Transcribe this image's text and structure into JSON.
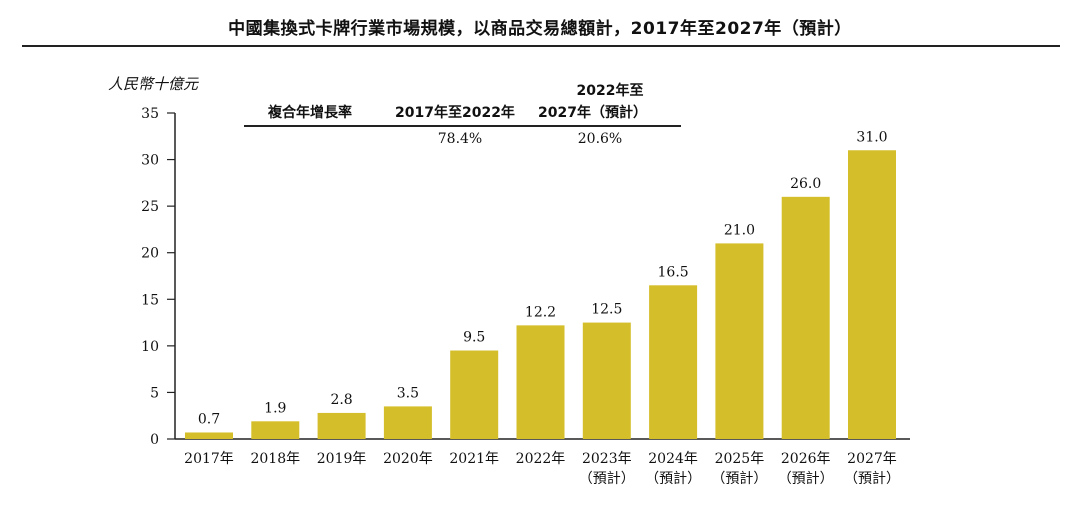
{
  "title": "中國集換式卡牌行業市場規模，以商品交易總額計，2017年至2027年（預計）",
  "unit_label": "人民幣十億元",
  "cagr_table": {
    "header": "複合年增長率",
    "col1": "2017年至2022年",
    "col2_line1": "2022年至",
    "col2_line2": "2027年（預計）",
    "val1": "78.4%",
    "val2": "20.6%"
  },
  "colors": {
    "bar": "#D4BE2A",
    "axis": "#222222"
  },
  "chart_data": {
    "type": "bar",
    "title": "中國集換式卡牌行業市場規模，以商品交易總額計，2017年至2027年（預計）",
    "ylabel": "人民幣十億元",
    "ylim": [
      0,
      35
    ],
    "yticks": [
      0,
      5,
      10,
      15,
      20,
      25,
      30,
      35
    ],
    "grid": false,
    "categories": [
      [
        "2017年"
      ],
      [
        "2018年"
      ],
      [
        "2019年"
      ],
      [
        "2020年"
      ],
      [
        "2021年"
      ],
      [
        "2022年"
      ],
      [
        "2023年",
        "（預計）"
      ],
      [
        "2024年",
        "（預計）"
      ],
      [
        "2025年",
        "（預計）"
      ],
      [
        "2026年",
        "（預計）"
      ],
      [
        "2027年",
        "（預計）"
      ]
    ],
    "values": [
      0.7,
      1.9,
      2.8,
      3.5,
      9.5,
      12.2,
      12.5,
      16.5,
      21.0,
      26.0,
      31.0
    ],
    "value_labels": [
      "0.7",
      "1.9",
      "2.8",
      "3.5",
      "9.5",
      "12.2",
      "12.5",
      "16.5",
      "21.0",
      "26.0",
      "31.0"
    ]
  }
}
